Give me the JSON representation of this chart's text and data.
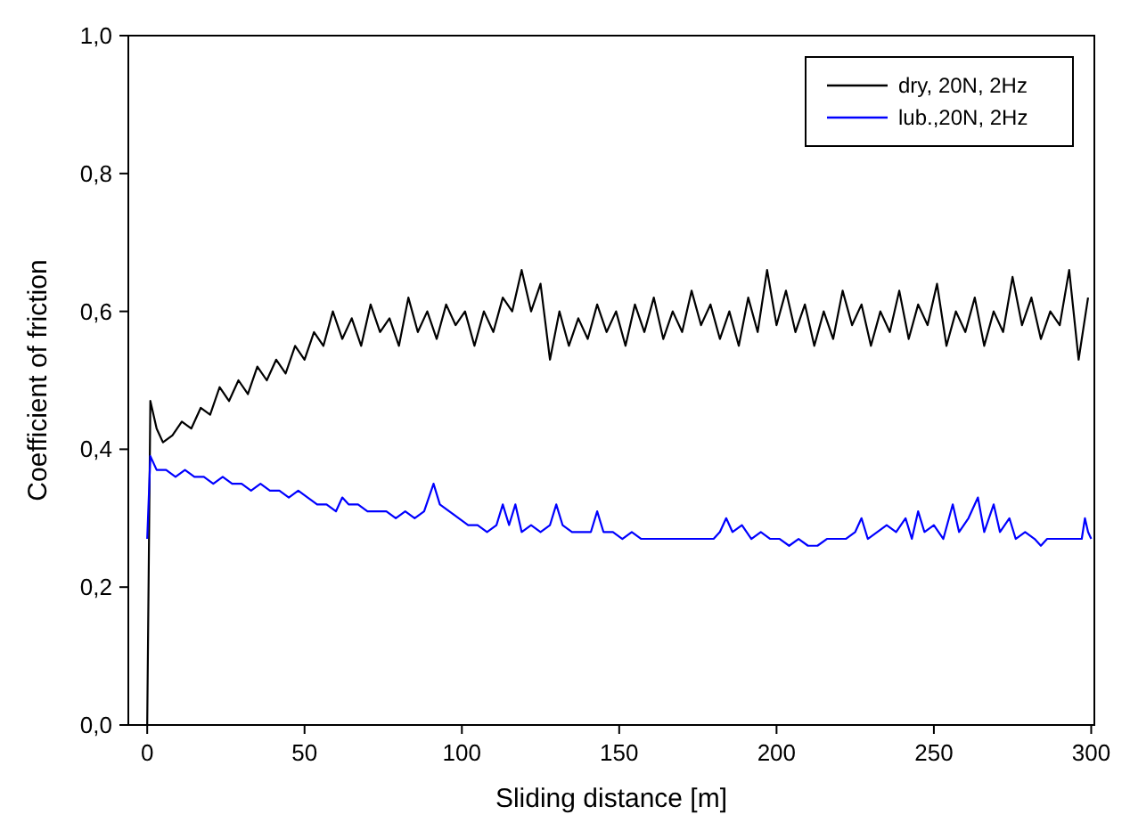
{
  "chart_data": {
    "type": "line",
    "xlabel": "Sliding distance [m]",
    "ylabel": "Coefficient of friction",
    "xlim": [
      -6,
      301
    ],
    "ylim": [
      0,
      1
    ],
    "xticks": [
      0,
      50,
      100,
      150,
      200,
      250,
      300
    ],
    "yticks": [
      {
        "value": 0,
        "label": "0,0"
      },
      {
        "value": 0.2,
        "label": "0,2"
      },
      {
        "value": 0.4,
        "label": "0,4"
      },
      {
        "value": 0.6,
        "label": "0,6"
      },
      {
        "value": 0.8,
        "label": "0,8"
      },
      {
        "value": 1,
        "label": "1,0"
      }
    ],
    "grid": false,
    "legend": "top right",
    "marker": "none",
    "line_style": "solid",
    "series": [
      {
        "name": "dry, 20N, 2Hz",
        "color": "#000000",
        "x": [
          0,
          1,
          3,
          5,
          8,
          11,
          14,
          17,
          20,
          23,
          26,
          29,
          32,
          35,
          38,
          41,
          44,
          47,
          50,
          53,
          56,
          59,
          62,
          65,
          68,
          71,
          74,
          77,
          80,
          83,
          86,
          89,
          92,
          95,
          98,
          101,
          104,
          107,
          110,
          113,
          116,
          119,
          122,
          125,
          128,
          131,
          134,
          137,
          140,
          143,
          146,
          149,
          152,
          155,
          158,
          161,
          164,
          167,
          170,
          173,
          176,
          179,
          182,
          185,
          188,
          191,
          194,
          197,
          200,
          203,
          206,
          209,
          212,
          215,
          218,
          221,
          224,
          227,
          230,
          233,
          236,
          239,
          242,
          245,
          248,
          251,
          254,
          257,
          260,
          263,
          266,
          269,
          272,
          275,
          278,
          281,
          284,
          287,
          290,
          293,
          296,
          299
        ],
        "values": [
          0,
          0.47,
          0.43,
          0.41,
          0.42,
          0.44,
          0.43,
          0.46,
          0.45,
          0.49,
          0.47,
          0.5,
          0.48,
          0.52,
          0.5,
          0.53,
          0.51,
          0.55,
          0.53,
          0.57,
          0.55,
          0.6,
          0.56,
          0.59,
          0.55,
          0.61,
          0.57,
          0.59,
          0.55,
          0.62,
          0.57,
          0.6,
          0.56,
          0.61,
          0.58,
          0.6,
          0.55,
          0.6,
          0.57,
          0.62,
          0.6,
          0.66,
          0.6,
          0.64,
          0.53,
          0.6,
          0.55,
          0.59,
          0.56,
          0.61,
          0.57,
          0.6,
          0.55,
          0.61,
          0.57,
          0.62,
          0.56,
          0.6,
          0.57,
          0.63,
          0.58,
          0.61,
          0.56,
          0.6,
          0.55,
          0.62,
          0.57,
          0.66,
          0.58,
          0.63,
          0.57,
          0.61,
          0.55,
          0.6,
          0.56,
          0.63,
          0.58,
          0.61,
          0.55,
          0.6,
          0.57,
          0.63,
          0.56,
          0.61,
          0.58,
          0.64,
          0.55,
          0.6,
          0.57,
          0.62,
          0.55,
          0.6,
          0.57,
          0.65,
          0.58,
          0.62,
          0.56,
          0.6,
          0.58,
          0.66,
          0.53,
          0.62
        ]
      },
      {
        "name": "lub.,20N, 2Hz",
        "color": "#0000ff",
        "x": [
          0,
          1,
          3,
          6,
          9,
          12,
          15,
          18,
          21,
          24,
          27,
          30,
          33,
          36,
          39,
          42,
          45,
          48,
          51,
          54,
          57,
          60,
          62,
          64,
          67,
          70,
          73,
          76,
          79,
          82,
          85,
          88,
          91,
          93,
          96,
          99,
          102,
          105,
          108,
          111,
          113,
          115,
          117,
          119,
          122,
          125,
          128,
          130,
          132,
          135,
          138,
          141,
          143,
          145,
          148,
          151,
          154,
          157,
          160,
          170,
          180,
          182,
          184,
          186,
          189,
          192,
          195,
          198,
          201,
          204,
          207,
          210,
          213,
          216,
          219,
          222,
          225,
          227,
          229,
          232,
          235,
          238,
          241,
          243,
          245,
          247,
          250,
          253,
          256,
          258,
          261,
          264,
          266,
          269,
          271,
          274,
          276,
          279,
          282,
          284,
          286,
          297,
          298,
          299,
          300
        ],
        "values": [
          0.27,
          0.39,
          0.37,
          0.37,
          0.36,
          0.37,
          0.36,
          0.36,
          0.35,
          0.36,
          0.35,
          0.35,
          0.34,
          0.35,
          0.34,
          0.34,
          0.33,
          0.34,
          0.33,
          0.32,
          0.32,
          0.31,
          0.33,
          0.32,
          0.32,
          0.31,
          0.31,
          0.31,
          0.3,
          0.31,
          0.3,
          0.31,
          0.35,
          0.32,
          0.31,
          0.3,
          0.29,
          0.29,
          0.28,
          0.29,
          0.32,
          0.29,
          0.32,
          0.28,
          0.29,
          0.28,
          0.29,
          0.32,
          0.29,
          0.28,
          0.28,
          0.28,
          0.31,
          0.28,
          0.28,
          0.27,
          0.28,
          0.27,
          0.27,
          0.27,
          0.27,
          0.28,
          0.3,
          0.28,
          0.29,
          0.27,
          0.28,
          0.27,
          0.27,
          0.26,
          0.27,
          0.26,
          0.26,
          0.27,
          0.27,
          0.27,
          0.28,
          0.3,
          0.27,
          0.28,
          0.29,
          0.28,
          0.3,
          0.27,
          0.31,
          0.28,
          0.29,
          0.27,
          0.32,
          0.28,
          0.3,
          0.33,
          0.28,
          0.32,
          0.28,
          0.3,
          0.27,
          0.28,
          0.27,
          0.26,
          0.27,
          0.27,
          0.3,
          0.28,
          0.27
        ]
      }
    ]
  }
}
